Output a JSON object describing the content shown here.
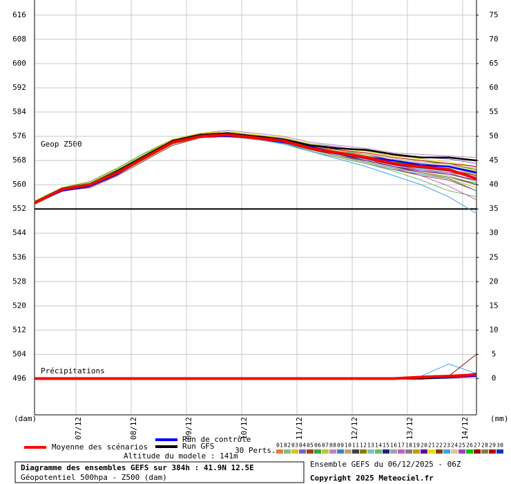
{
  "chart_data": {
    "type": "line",
    "annotations": [
      "Geop Z500",
      "Précipitations"
    ],
    "y_label": "(dam)",
    "y2_label": "(mm)",
    "x": [
      6.25,
      6.75,
      7.25,
      7.75,
      8.25,
      8.75,
      9.25,
      9.75,
      10.25,
      10.75,
      11.25,
      11.75,
      12.25,
      12.75,
      13.25,
      13.75,
      14.25
    ],
    "xlim": [
      6.25,
      14.25
    ],
    "xticks": [
      {
        "value": 7,
        "label": "07/12"
      },
      {
        "value": 8,
        "label": "08/12"
      },
      {
        "value": 9,
        "label": "09/12"
      },
      {
        "value": 10,
        "label": "10/12"
      },
      {
        "value": 11,
        "label": "11/12"
      },
      {
        "value": 12,
        "label": "12/12"
      },
      {
        "value": 13,
        "label": "13/12"
      },
      {
        "value": 14,
        "label": "14/12"
      }
    ],
    "ylim": [
      484,
      621
    ],
    "yticks": [
      496,
      504,
      512,
      520,
      528,
      536,
      544,
      552,
      560,
      568,
      576,
      584,
      592,
      600,
      608,
      616
    ],
    "y2lim": [
      -7.5,
      78.125
    ],
    "y2ticks": [
      0,
      5,
      10,
      15,
      20,
      25,
      30,
      35,
      40,
      45,
      50,
      55,
      60,
      65,
      70,
      75
    ],
    "separator": 552,
    "grid": true,
    "perturbations_label": "30 Perts.",
    "series": [
      {
        "name": "Moyenne des scénarios",
        "color": "#ff0000",
        "values": [
          554,
          558.5,
          560,
          564,
          569,
          574,
          576,
          576.5,
          575.5,
          574.5,
          572,
          570.5,
          569,
          567,
          566,
          565,
          562
        ],
        "precip": [
          0,
          0,
          0,
          0,
          0,
          0,
          0,
          0,
          0,
          0,
          0,
          0,
          0,
          0,
          0.3,
          0.5,
          0.8
        ]
      },
      {
        "name": "Run de contrôle",
        "color": "#0000ff",
        "values": [
          554,
          558,
          559.5,
          563.5,
          569,
          574.5,
          576,
          576,
          575.5,
          574,
          572.5,
          570.5,
          569,
          568,
          566.5,
          566,
          564
        ],
        "precip": [
          0,
          0,
          0,
          0,
          0,
          0,
          0,
          0,
          0,
          0,
          0,
          0,
          0,
          0,
          0,
          0.2,
          0.5
        ]
      },
      {
        "name": "Run GFS",
        "color": "#000000",
        "values": [
          554,
          558.5,
          560,
          564.5,
          569.5,
          574.5,
          576.5,
          577,
          576,
          575,
          573,
          572,
          571.5,
          570,
          569,
          569,
          568
        ],
        "precip": [
          0,
          0,
          0,
          0,
          0,
          0,
          0,
          0,
          0,
          0,
          0,
          0,
          0,
          0,
          0,
          0.3,
          1
        ]
      },
      {
        "name": "01",
        "color": "#e08040",
        "values": [
          554,
          558,
          560,
          564,
          569,
          573.5,
          576,
          576,
          575,
          574,
          571.5,
          570,
          568.5,
          566,
          565,
          564,
          561
        ]
      },
      {
        "name": "02",
        "color": "#80c080",
        "values": [
          554.5,
          559,
          560.5,
          565,
          570,
          575,
          577,
          577.5,
          576.5,
          575.5,
          573,
          571,
          569.5,
          568,
          567,
          566,
          563
        ]
      },
      {
        "name": "03",
        "color": "#e0c020",
        "values": [
          553.5,
          558,
          559.5,
          563,
          568,
          573,
          575.5,
          576,
          575,
          574,
          571.5,
          569.5,
          567.5,
          565.5,
          564,
          562,
          559
        ]
      },
      {
        "name": "04",
        "color": "#8060c0",
        "values": [
          554,
          558.5,
          560,
          564.5,
          569.5,
          574.5,
          577,
          577.5,
          576.5,
          575.5,
          573.5,
          572.5,
          571,
          569.5,
          569,
          568.5,
          567
        ]
      },
      {
        "name": "05",
        "color": "#a04020",
        "values": [
          554,
          558,
          559,
          563,
          568,
          573,
          575.5,
          576,
          575,
          573.5,
          571,
          569,
          567,
          565,
          563,
          561.5,
          558
        ]
      },
      {
        "name": "06",
        "color": "#40a040",
        "values": [
          554.5,
          559,
          560.5,
          564.5,
          569.5,
          574.5,
          576.5,
          577,
          576,
          575,
          572.5,
          571,
          570,
          568.5,
          567.5,
          567,
          565
        ]
      },
      {
        "name": "07",
        "color": "#c0c040",
        "values": [
          554,
          558.5,
          560,
          564,
          569,
          574,
          576,
          576.5,
          575.5,
          574.5,
          572,
          570,
          568,
          566,
          564.5,
          563,
          560
        ]
      },
      {
        "name": "08",
        "color": "#c080c0",
        "values": [
          554,
          558.5,
          560.5,
          565,
          570,
          575,
          577,
          578,
          577,
          576,
          574,
          573,
          572,
          570.5,
          570,
          569.5,
          569
        ]
      },
      {
        "name": "09",
        "color": "#4080c0",
        "values": [
          553.5,
          558,
          559.5,
          563.5,
          568.5,
          573.5,
          575.5,
          576,
          575,
          574,
          571,
          569,
          567,
          565,
          563.5,
          562,
          558
        ]
      },
      {
        "name": "10",
        "color": "#c0a080",
        "values": [
          554,
          558.5,
          560,
          564,
          569,
          574,
          576,
          576.5,
          575.5,
          574.5,
          572.5,
          571,
          569.5,
          567.5,
          566,
          565,
          563
        ]
      },
      {
        "name": "11",
        "color": "#404040",
        "values": [
          554,
          558,
          559.5,
          563.5,
          568.5,
          573.5,
          576,
          576.5,
          575,
          574,
          571.5,
          569.5,
          568,
          566,
          564,
          562.5,
          560
        ]
      },
      {
        "name": "12",
        "color": "#808000",
        "values": [
          554.5,
          559,
          561,
          565.5,
          570.5,
          575,
          577,
          577.5,
          576.5,
          575,
          573,
          571.5,
          570,
          568.5,
          567.5,
          566.5,
          565
        ]
      },
      {
        "name": "13",
        "color": "#80c0c0",
        "values": [
          554,
          558.5,
          560,
          564,
          569,
          574,
          576,
          576.5,
          575.5,
          574,
          572,
          570,
          568.5,
          566.5,
          565,
          563.5,
          561
        ]
      },
      {
        "name": "14",
        "color": "#60c060",
        "values": [
          554,
          558,
          559.5,
          563.5,
          568.5,
          573.5,
          575.5,
          576,
          575,
          573.5,
          571,
          569,
          567,
          564.5,
          561.5,
          558,
          556
        ]
      },
      {
        "name": "15",
        "color": "#202080",
        "values": [
          554,
          558.5,
          560,
          564.5,
          569.5,
          574.5,
          576.5,
          577,
          576,
          575,
          573,
          571.5,
          570,
          568,
          567,
          566,
          564
        ]
      },
      {
        "name": "16",
        "color": "#a0a0a0",
        "values": [
          554,
          558.5,
          560,
          564,
          569,
          574,
          576,
          576.5,
          575.5,
          574.5,
          572,
          570.5,
          569,
          567,
          566,
          565.5,
          564
        ]
      },
      {
        "name": "17",
        "color": "#c060c0",
        "values": [
          553.5,
          558,
          559.5,
          563.5,
          568.5,
          573.5,
          575.5,
          576,
          575,
          574,
          571.5,
          569.5,
          567.5,
          565.5,
          563,
          559.5,
          555
        ]
      },
      {
        "name": "18",
        "color": "#808080",
        "values": [
          554,
          558.5,
          560,
          564,
          569,
          574,
          576.5,
          577,
          576,
          575,
          572.5,
          571,
          569.5,
          568,
          567,
          566,
          563.5
        ]
      },
      {
        "name": "19",
        "color": "#c0a000",
        "values": [
          554,
          558.5,
          560.5,
          564.5,
          569.5,
          574.5,
          576.5,
          577,
          576,
          574.5,
          572.5,
          571,
          569.5,
          567.5,
          566.5,
          566,
          564.5
        ]
      },
      {
        "name": "20",
        "color": "#6000a0",
        "values": [
          554,
          558,
          559.5,
          563.5,
          568.5,
          573.5,
          575.5,
          576,
          575,
          574,
          571.5,
          570,
          568,
          566,
          564.5,
          563.5,
          561.5
        ]
      },
      {
        "name": "21",
        "color": "#e0e000",
        "values": [
          554.5,
          559,
          560.5,
          565,
          570,
          575,
          577,
          577.5,
          576.5,
          575.5,
          573.5,
          572,
          571,
          569.5,
          568.5,
          567.5,
          566
        ]
      },
      {
        "name": "22",
        "color": "#804000",
        "values": [
          554,
          558.5,
          560,
          564,
          569,
          574,
          576,
          576.5,
          575.5,
          574.5,
          572,
          570.5,
          569,
          567,
          565.5,
          564.5,
          562
        ]
      },
      {
        "name": "23",
        "color": "#40a0e0",
        "values": [
          554,
          558,
          559.5,
          563.5,
          568.5,
          573.5,
          575.5,
          576,
          575,
          573.5,
          571,
          568.5,
          566,
          563,
          560,
          556,
          550.5
        ],
        "precip": [
          0,
          0,
          0,
          0,
          0,
          0,
          0,
          0,
          0,
          0,
          0,
          0,
          0,
          0,
          0.5,
          3,
          1
        ]
      },
      {
        "name": "24",
        "color": "#e0c0a0",
        "values": [
          554,
          558.5,
          560,
          564.5,
          569.5,
          574.5,
          576.5,
          577,
          576,
          575,
          573,
          571.5,
          570,
          568.5,
          567.5,
          566.5,
          565.5
        ]
      },
      {
        "name": "25",
        "color": "#a040c0",
        "values": [
          554,
          558.5,
          560,
          564,
          569,
          574,
          576,
          576.5,
          575.5,
          574.5,
          572,
          570.5,
          568.5,
          566.5,
          565,
          564,
          562.5
        ]
      },
      {
        "name": "26",
        "color": "#00c000",
        "values": [
          554.5,
          559,
          560.5,
          565,
          570,
          574.5,
          576.5,
          577,
          576,
          575,
          572.5,
          570.5,
          569,
          567.5,
          566.5,
          565,
          563
        ]
      },
      {
        "name": "27",
        "color": "#a00000",
        "values": [
          554,
          558.5,
          560,
          564,
          569,
          574,
          576,
          576.5,
          575.5,
          574,
          572,
          570.5,
          569,
          567,
          566,
          565,
          563
        ],
        "precip": [
          0,
          0,
          0,
          0,
          0,
          0,
          0,
          0,
          0,
          0,
          0,
          0,
          0,
          0,
          0,
          0.5,
          5
        ]
      },
      {
        "name": "28",
        "color": "#808040",
        "values": [
          553.5,
          558,
          559.5,
          563.5,
          568.5,
          573.5,
          575.5,
          576,
          575,
          574,
          571.5,
          569.5,
          567.5,
          565.5,
          564,
          562.5,
          560.5
        ]
      },
      {
        "name": "29",
        "color": "#c00000",
        "values": [
          554,
          558.5,
          560,
          564.5,
          569.5,
          574.5,
          576.5,
          577,
          576,
          575,
          573,
          571.5,
          570.5,
          569,
          568,
          567,
          566
        ]
      },
      {
        "name": "30",
        "color": "#0040a0",
        "values": [
          554,
          558.5,
          560,
          564,
          569,
          574,
          576,
          576.5,
          575.5,
          574.5,
          572,
          570,
          568.5,
          566.5,
          565.5,
          564.5,
          562
        ]
      }
    ]
  },
  "footer": {
    "altitude": "Altitude du modele : 141m",
    "title": "Diagramme des ensembles GEFS sur 384h : 41.9N 12.5E",
    "subtitle": "Géopotentiel 500hpa - Z500 (dam)",
    "run": "Ensemble GEFS du 06/12/2025 - 06Z",
    "copyright": "Copyright 2025 Meteociel.fr"
  }
}
